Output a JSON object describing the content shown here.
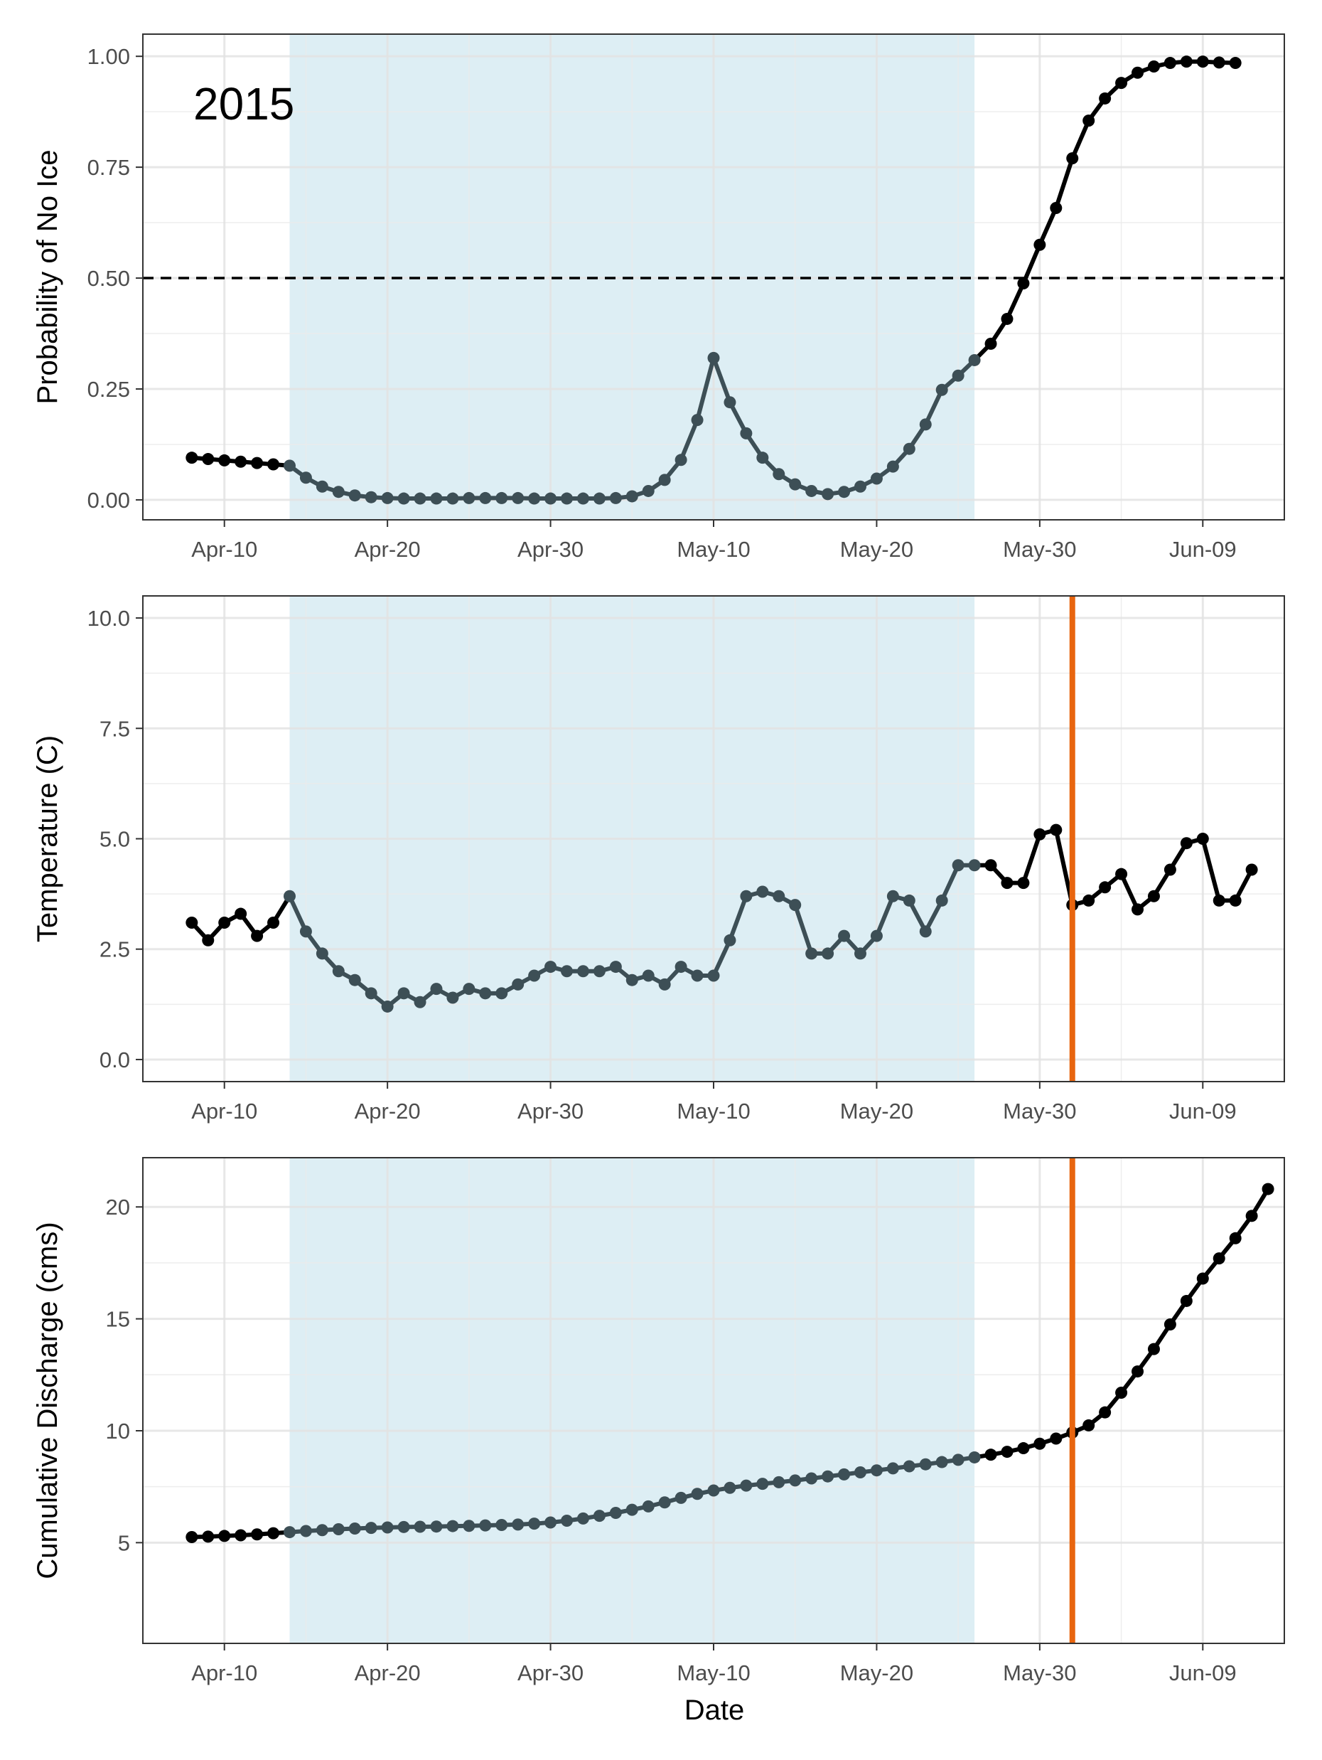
{
  "figure": {
    "year_label": "2015",
    "xlabel": "Date"
  },
  "colors": {
    "shade": "#ddeef4",
    "in_window_line": "#3d4f56",
    "out_window_line": "#000000",
    "event_line": "#e8650f",
    "threshold_line": "#000000"
  },
  "chart_data": [
    {
      "type": "line",
      "ylabel": "Probability of No Ice",
      "ylim": [
        -0.045,
        1.05
      ],
      "yticks": [
        0.0,
        0.25,
        0.5,
        0.75,
        1.0
      ],
      "ytick_labels": [
        "0.00",
        "0.25",
        "0.50",
        "0.75",
        "1.00"
      ],
      "xticks": [
        "2015-04-10",
        "2015-04-20",
        "2015-04-30",
        "2015-05-10",
        "2015-05-20",
        "2015-05-30",
        "2015-06-09"
      ],
      "xtick_labels": [
        "Apr-10",
        "Apr-20",
        "Apr-30",
        "May-10",
        "May-20",
        "May-30",
        "Jun-09"
      ],
      "xlim": [
        "2015-04-05",
        "2015-06-14"
      ],
      "shaded_range": [
        "2015-04-14",
        "2015-05-26"
      ],
      "threshold": 0.5,
      "threshold_style": "dashed",
      "event_date": null,
      "grid": true,
      "start_date": "2015-04-08",
      "values": [
        0.095,
        0.092,
        0.089,
        0.086,
        0.083,
        0.08,
        0.077,
        0.05,
        0.03,
        0.018,
        0.01,
        0.006,
        0.004,
        0.003,
        0.003,
        0.003,
        0.003,
        0.004,
        0.004,
        0.004,
        0.004,
        0.003,
        0.003,
        0.003,
        0.003,
        0.003,
        0.004,
        0.008,
        0.02,
        0.045,
        0.09,
        0.18,
        0.32,
        0.22,
        0.15,
        0.095,
        0.058,
        0.035,
        0.02,
        0.013,
        0.018,
        0.03,
        0.048,
        0.075,
        0.115,
        0.17,
        0.248,
        0.28,
        0.315,
        0.352,
        0.408,
        0.488,
        0.575,
        0.658,
        0.77,
        0.855,
        0.905,
        0.94,
        0.963,
        0.977,
        0.985,
        0.988,
        0.988,
        0.986,
        0.985
      ]
    },
    {
      "type": "line",
      "ylabel": "Temperature (C)",
      "ylim": [
        -0.5,
        10.5
      ],
      "yticks": [
        0.0,
        2.5,
        5.0,
        7.5,
        10.0
      ],
      "ytick_labels": [
        "0.0",
        "2.5",
        "5.0",
        "7.5",
        "10.0"
      ],
      "xticks": [
        "2015-04-10",
        "2015-04-20",
        "2015-04-30",
        "2015-05-10",
        "2015-05-20",
        "2015-05-30",
        "2015-06-09"
      ],
      "xtick_labels": [
        "Apr-10",
        "Apr-20",
        "Apr-30",
        "May-10",
        "May-20",
        "May-30",
        "Jun-09"
      ],
      "xlim": [
        "2015-04-05",
        "2015-06-14"
      ],
      "shaded_range": [
        "2015-04-14",
        "2015-05-26"
      ],
      "threshold": null,
      "event_date": "2015-06-01",
      "grid": true,
      "start_date": "2015-04-08",
      "values": [
        3.1,
        2.7,
        3.1,
        3.3,
        2.8,
        3.1,
        3.7,
        2.9,
        2.4,
        2.0,
        1.8,
        1.5,
        1.2,
        1.5,
        1.3,
        1.6,
        1.4,
        1.6,
        1.5,
        1.5,
        1.7,
        1.9,
        2.1,
        2.0,
        2.0,
        2.0,
        2.1,
        1.8,
        1.9,
        1.7,
        2.1,
        1.9,
        1.9,
        2.7,
        3.7,
        3.8,
        3.7,
        3.5,
        2.4,
        2.4,
        2.8,
        2.4,
        2.8,
        3.7,
        3.6,
        2.9,
        3.6,
        4.4,
        4.4,
        4.4,
        4.0,
        4.0,
        5.1,
        5.2,
        3.5,
        3.6,
        3.9,
        4.2,
        3.4,
        3.7,
        4.3,
        4.9,
        5.0,
        3.6,
        3.6,
        4.3
      ]
    },
    {
      "type": "line",
      "ylabel": "Cumulative Discharge (cms)",
      "ylim": [
        0.5,
        22.2
      ],
      "yticks": [
        5,
        10,
        15,
        20
      ],
      "ytick_labels": [
        "5",
        "10",
        "15",
        "20"
      ],
      "xticks": [
        "2015-04-10",
        "2015-04-20",
        "2015-04-30",
        "2015-05-10",
        "2015-05-20",
        "2015-05-30",
        "2015-06-09"
      ],
      "xtick_labels": [
        "Apr-10",
        "Apr-20",
        "Apr-30",
        "May-10",
        "May-20",
        "May-30",
        "Jun-09"
      ],
      "xlim": [
        "2015-04-05",
        "2015-06-14"
      ],
      "shaded_range": [
        "2015-04-14",
        "2015-05-26"
      ],
      "threshold": null,
      "event_date": "2015-06-01",
      "grid": true,
      "start_date": "2015-04-08",
      "values": [
        5.25,
        5.27,
        5.3,
        5.33,
        5.37,
        5.42,
        5.47,
        5.52,
        5.56,
        5.6,
        5.63,
        5.66,
        5.68,
        5.7,
        5.71,
        5.72,
        5.74,
        5.75,
        5.77,
        5.79,
        5.81,
        5.85,
        5.9,
        5.98,
        6.08,
        6.2,
        6.33,
        6.47,
        6.62,
        6.8,
        7.0,
        7.18,
        7.33,
        7.45,
        7.55,
        7.63,
        7.7,
        7.78,
        7.87,
        7.96,
        8.05,
        8.14,
        8.23,
        8.32,
        8.41,
        8.5,
        8.6,
        8.7,
        8.81,
        8.93,
        9.06,
        9.22,
        9.42,
        9.65,
        9.92,
        10.24,
        10.82,
        11.7,
        12.65,
        13.65,
        14.75,
        15.8,
        16.8,
        17.7,
        18.6,
        19.6,
        20.8
      ]
    }
  ]
}
